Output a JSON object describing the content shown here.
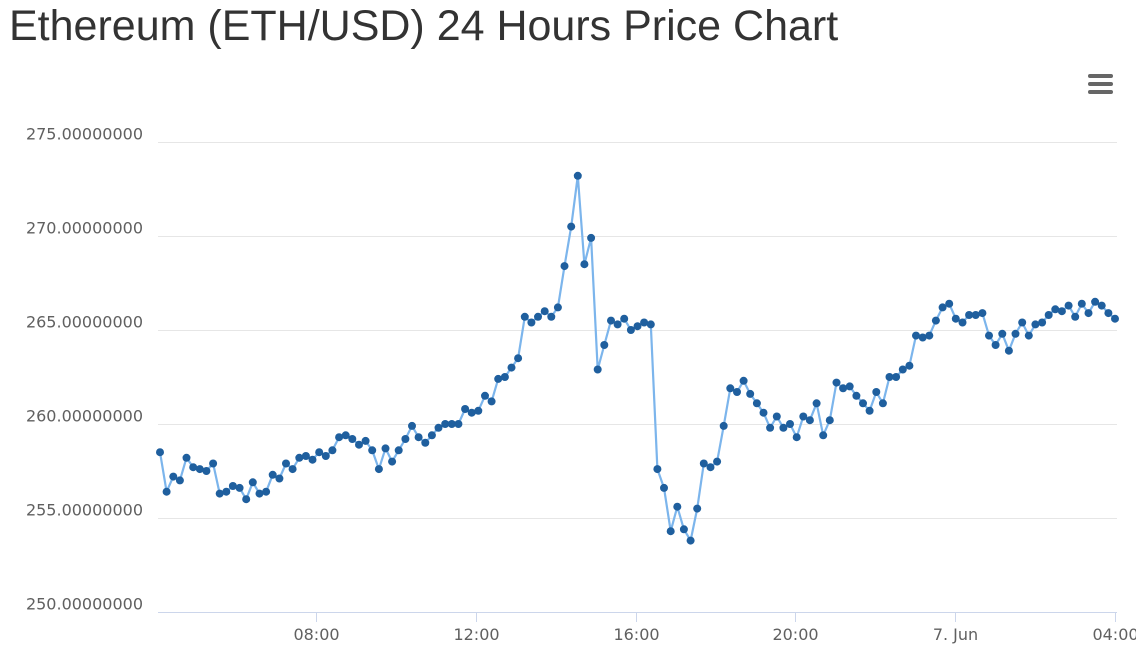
{
  "header": {
    "title": "Ethereum (ETH/USD) 24 Hours Price Chart"
  },
  "toolbar": {
    "menu_icon": "hamburger-menu-icon"
  },
  "colors": {
    "line": "#7cb5ec",
    "marker": "#1f5f9e",
    "grid": "#e6e6e6",
    "axis": "#ccd6eb",
    "text": "#606060",
    "title": "#333333"
  },
  "chart_data": {
    "type": "line",
    "title": "Ethereum (ETH/USD) 24 Hours Price Chart",
    "xlabel": "",
    "ylabel": "",
    "ylim": [
      250,
      275
    ],
    "y_ticks": [
      "250.00000000",
      "255.00000000",
      "260.00000000",
      "265.00000000",
      "270.00000000",
      "275.00000000"
    ],
    "y_tick_values": [
      250,
      255,
      260,
      265,
      270,
      275
    ],
    "x_range_hours": [
      4.05,
      28.05
    ],
    "x_ticks": [
      {
        "label": "08:00",
        "hour": 8
      },
      {
        "label": "12:00",
        "hour": 12
      },
      {
        "label": "16:00",
        "hour": 16
      },
      {
        "label": "20:00",
        "hour": 20
      },
      {
        "label": "7. Jun",
        "hour": 24
      },
      {
        "label": "04:00",
        "hour": 28
      }
    ],
    "grid": true,
    "legend": "none",
    "series": [
      {
        "values": [
          258.5,
          256.4,
          257.2,
          257.0,
          258.2,
          257.7,
          257.6,
          257.5,
          257.9,
          256.3,
          256.4,
          256.7,
          256.6,
          256.0,
          256.9,
          256.3,
          256.4,
          257.3,
          257.1,
          257.9,
          257.6,
          258.2,
          258.3,
          258.1,
          258.5,
          258.3,
          258.6,
          259.3,
          259.4,
          259.2,
          258.9,
          259.1,
          258.6,
          257.6,
          258.7,
          258.0,
          258.6,
          259.2,
          259.9,
          259.3,
          259.0,
          259.4,
          259.8,
          260.0,
          260.0,
          260.0,
          260.8,
          260.6,
          260.7,
          261.5,
          261.2,
          262.4,
          262.5,
          263.0,
          263.5,
          265.7,
          265.4,
          265.7,
          266.0,
          265.7,
          266.2,
          268.4,
          270.5,
          273.2,
          268.5,
          269.9,
          262.9,
          264.2,
          265.5,
          265.3,
          265.6,
          265.0,
          265.2,
          265.4,
          265.3,
          257.6,
          256.6,
          254.3,
          255.6,
          254.4,
          253.8,
          255.5,
          257.9,
          257.7,
          258.0,
          259.9,
          261.9,
          261.7,
          262.3,
          261.6,
          261.1,
          260.6,
          259.8,
          260.4,
          259.8,
          260.0,
          259.3,
          260.4,
          260.2,
          261.1,
          259.4,
          260.2,
          262.2,
          261.9,
          262.0,
          261.5,
          261.1,
          260.7,
          261.7,
          261.1,
          262.5,
          262.5,
          262.9,
          263.1,
          264.7,
          264.6,
          264.7,
          265.5,
          266.2,
          266.4,
          265.6,
          265.4,
          265.8,
          265.8,
          265.9,
          264.7,
          264.2,
          264.8,
          263.9,
          264.8,
          265.4,
          264.7,
          265.3,
          265.4,
          265.8,
          266.1,
          266.0,
          266.3,
          265.7,
          266.4,
          265.9,
          266.5,
          266.3,
          265.9,
          265.6
        ]
      }
    ]
  }
}
